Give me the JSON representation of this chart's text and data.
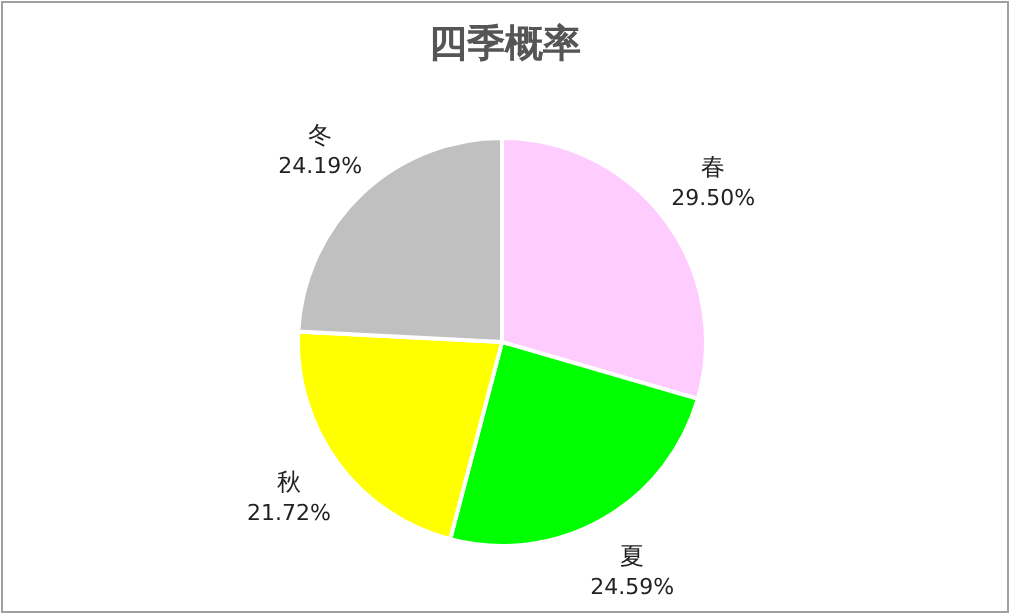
{
  "chart_data": {
    "type": "pie",
    "title": "四季概率",
    "categories": [
      "春",
      "夏",
      "秋",
      "冬"
    ],
    "values": [
      29.5,
      24.59,
      21.72,
      24.19
    ],
    "colors": [
      "#ffccff",
      "#00ff00",
      "#ffff00",
      "#c0c0c0"
    ],
    "value_labels": [
      "29.50%",
      "24.59%",
      "21.72%",
      "24.19%"
    ]
  }
}
